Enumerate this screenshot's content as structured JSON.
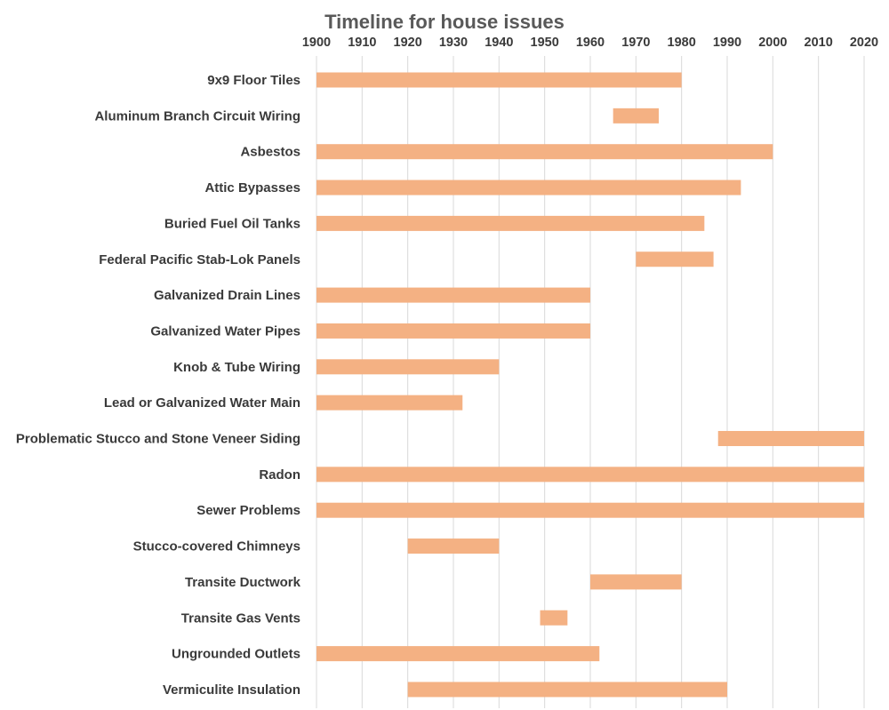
{
  "chart_data": {
    "type": "bar",
    "orientation": "horizontal",
    "subtype": "floating-range",
    "title": "Timeline for house issues",
    "xlabel": "",
    "ylabel": "",
    "xlim": [
      1900,
      2020
    ],
    "x_ticks": [
      "1900",
      "1910",
      "1920",
      "1930",
      "1940",
      "1950",
      "1960",
      "1970",
      "1980",
      "1990",
      "2000",
      "2010",
      "2020"
    ],
    "x_axis_position": "top",
    "grid": "vertical",
    "legend": "none",
    "bar_color": "#F4B183",
    "categories": [
      "9x9 Floor Tiles",
      "Aluminum Branch Circuit Wiring",
      "Asbestos",
      "Attic Bypasses",
      "Buried Fuel Oil Tanks",
      "Federal Pacific Stab-Lok  Panels",
      "Galvanized Drain Lines",
      "Galvanized Water Pipes",
      "Knob & Tube Wiring",
      "Lead or Galvanized Water Main",
      "Problematic Stucco and Stone Veneer Siding",
      "Radon",
      "Sewer Problems",
      "Stucco-covered Chimneys",
      "Transite Ductwork",
      "Transite Gas Vents",
      "Ungrounded Outlets",
      "Vermiculite Insulation"
    ],
    "series": [
      {
        "start": [
          1900,
          1965,
          1900,
          1900,
          1900,
          1970,
          1900,
          1900,
          1900,
          1900,
          1988,
          1900,
          1900,
          1920,
          1960,
          1949,
          1900,
          1920
        ],
        "end": [
          1980,
          1975,
          2000,
          1993,
          1985,
          1987,
          1960,
          1960,
          1940,
          1932,
          2020,
          2020,
          2020,
          1940,
          1980,
          1955,
          1962,
          1990
        ]
      }
    ]
  }
}
